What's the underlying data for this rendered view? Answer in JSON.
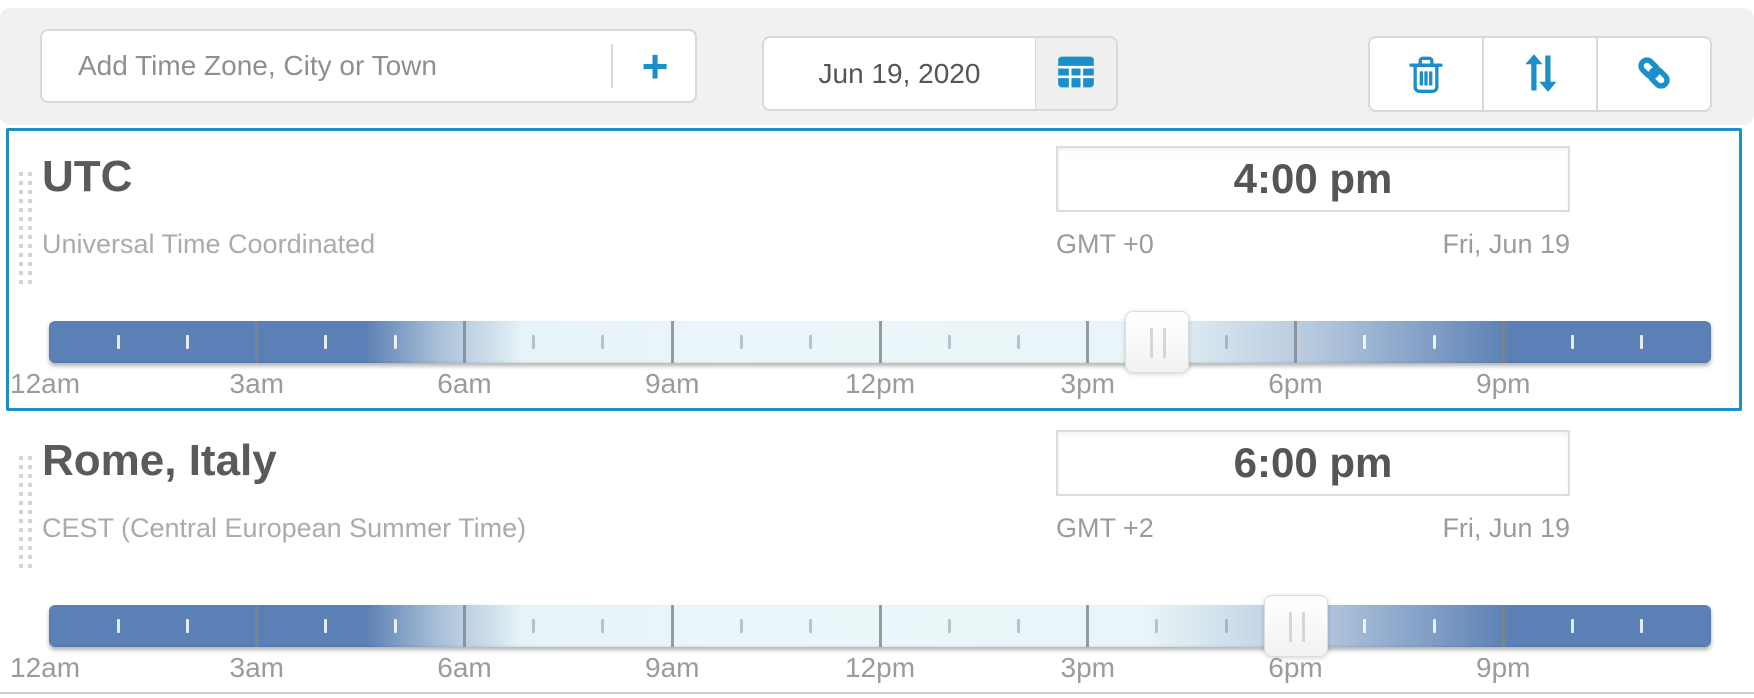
{
  "header": {
    "search": {
      "placeholder": "Add Time Zone, City or Town",
      "add_label": "+"
    },
    "date": {
      "value": "Jun 19, 2020"
    },
    "actions": {
      "delete_icon": "trash-icon",
      "sort_icon": "sort-arrows-icon",
      "share_icon": "link-icon",
      "calendar_icon": "calendar-grid-icon"
    },
    "accent_color": "#1b8fc9"
  },
  "timeline": {
    "hour_labels": [
      "12am",
      "3am",
      "6am",
      "9am",
      "12pm",
      "3pm",
      "6pm",
      "9pm"
    ],
    "night_color": "#5b80b5",
    "day_color": "#e9f5f8"
  },
  "rows": [
    {
      "name": "UTC",
      "subtitle": "Universal Time Coordinated",
      "time": "4:00 pm",
      "gmt": "GMT +0",
      "date": "Fri, Jun 19",
      "selected": true,
      "slider_hour": 16
    },
    {
      "name": "Rome, Italy",
      "subtitle": "CEST (Central European Summer Time)",
      "time": "6:00 pm",
      "gmt": "GMT +2",
      "date": "Fri, Jun 19",
      "selected": false,
      "slider_hour": 18
    }
  ]
}
